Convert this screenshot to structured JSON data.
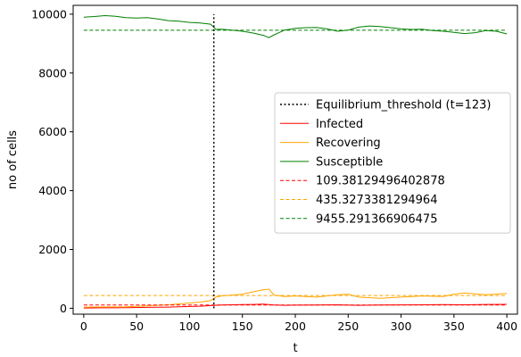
{
  "chart_data": {
    "type": "line",
    "xlabel": "t",
    "ylabel": "no of cells",
    "xlim": [
      -10,
      410
    ],
    "ylim": [
      -200,
      10300
    ],
    "xticks": [
      0,
      50,
      100,
      150,
      200,
      250,
      300,
      350,
      400
    ],
    "yticks": [
      0,
      2000,
      4000,
      6000,
      8000,
      10000
    ],
    "grid": false,
    "legend_position": "center-right",
    "threshold": {
      "name": "Equilibrium_threshold (t=123)",
      "x": 123,
      "y_range": [
        0,
        10000
      ],
      "color": "#000000",
      "style": "dotted"
    },
    "series": [
      {
        "name": "Infected",
        "color": "#ff0000",
        "x": [
          0,
          20,
          40,
          60,
          80,
          100,
          110,
          120,
          130,
          140,
          150,
          160,
          170,
          180,
          190,
          200,
          220,
          240,
          260,
          280,
          300,
          320,
          340,
          360,
          380,
          400
        ],
        "values": [
          10,
          15,
          20,
          30,
          40,
          60,
          70,
          90,
          110,
          120,
          125,
          130,
          140,
          110,
          100,
          105,
          110,
          120,
          100,
          110,
          115,
          120,
          125,
          120,
          130,
          135
        ]
      },
      {
        "name": "Recovering",
        "color": "#ffa500",
        "x": [
          0,
          20,
          40,
          60,
          80,
          100,
          110,
          120,
          125,
          130,
          140,
          150,
          160,
          170,
          175,
          180,
          190,
          200,
          220,
          240,
          250,
          260,
          280,
          300,
          320,
          340,
          350,
          360,
          380,
          400
        ],
        "values": [
          40,
          45,
          50,
          80,
          120,
          180,
          210,
          260,
          380,
          420,
          450,
          480,
          560,
          630,
          650,
          450,
          400,
          420,
          380,
          460,
          480,
          380,
          340,
          380,
          420,
          400,
          480,
          520,
          460,
          500
        ]
      },
      {
        "name": "Susceptible",
        "color": "#008000",
        "x": [
          0,
          10,
          20,
          30,
          40,
          50,
          60,
          70,
          80,
          90,
          100,
          110,
          120,
          125,
          130,
          140,
          150,
          160,
          170,
          175,
          180,
          190,
          200,
          210,
          220,
          230,
          240,
          250,
          260,
          270,
          280,
          290,
          300,
          310,
          320,
          330,
          340,
          350,
          360,
          370,
          380,
          390,
          400
        ],
        "values": [
          9900,
          9920,
          9950,
          9930,
          9880,
          9870,
          9880,
          9840,
          9780,
          9760,
          9720,
          9700,
          9660,
          9480,
          9490,
          9460,
          9420,
          9360,
          9280,
          9200,
          9300,
          9460,
          9520,
          9540,
          9550,
          9500,
          9420,
          9460,
          9560,
          9600,
          9580,
          9540,
          9500,
          9480,
          9490,
          9440,
          9420,
          9380,
          9340,
          9370,
          9440,
          9420,
          9330
        ]
      }
    ],
    "mean_lines": [
      {
        "name": "109.38129496402878",
        "y": 109.38129496402878,
        "color": "#ff0000",
        "style": "dashed"
      },
      {
        "name": "435.3273381294964",
        "y": 435.3273381294964,
        "color": "#ffa500",
        "style": "dashed"
      },
      {
        "name": "9455.291366906475",
        "y": 9455.291366906475,
        "color": "#008000",
        "style": "dashed"
      }
    ]
  }
}
